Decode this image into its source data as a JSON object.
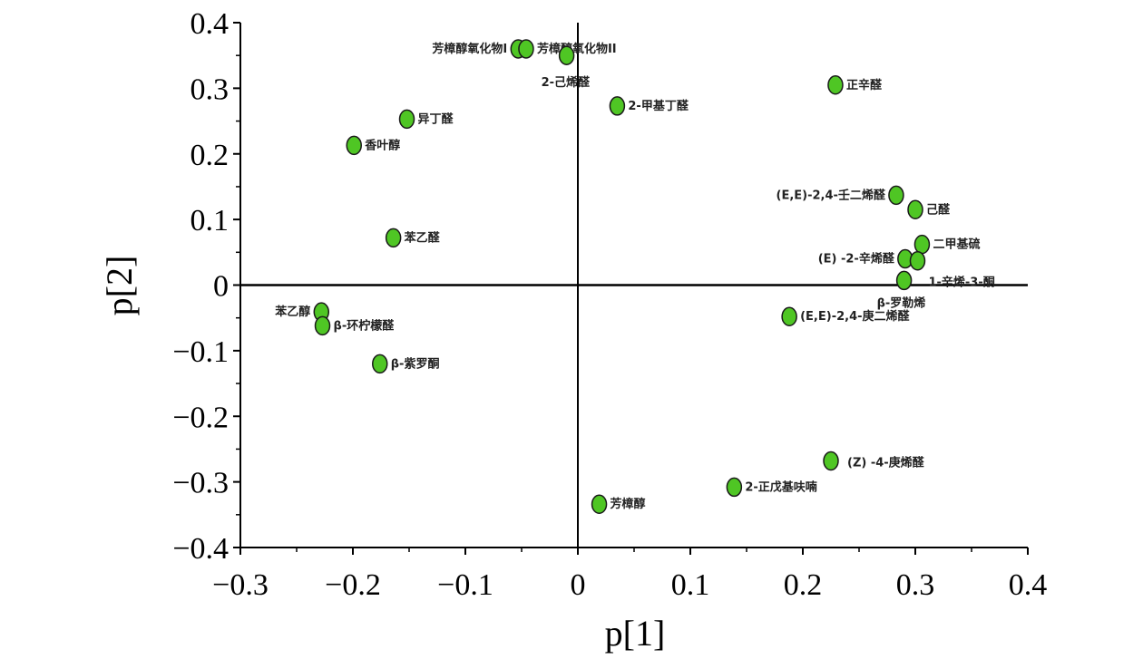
{
  "chart_data": {
    "type": "scatter",
    "title": "",
    "xlabel": "p[1]",
    "ylabel": "p[2]",
    "xlim": [
      -0.3,
      0.4
    ],
    "ylim": [
      -0.4,
      0.4
    ],
    "xticks": [
      "−0.3",
      "−0.2",
      "−0.1",
      "0",
      "0.1",
      "0.2",
      "0.3",
      "0.4"
    ],
    "yticks": [
      "0.4",
      "0.3",
      "0.2",
      "0.1",
      "0",
      "−0.1",
      "−0.2",
      "−0.3",
      "−0.4"
    ],
    "marker_color": "#4fc624",
    "points": [
      {
        "label": "芳樟醇氧化物I",
        "x": -0.053,
        "y": 0.36
      },
      {
        "label": "芳樟醇氧化物II",
        "x": -0.046,
        "y": 0.36
      },
      {
        "label": "2-己烯醛",
        "x": -0.01,
        "y": 0.35
      },
      {
        "label": "2-甲基丁醛",
        "x": 0.035,
        "y": 0.273
      },
      {
        "label": "正辛醛",
        "x": 0.229,
        "y": 0.305
      },
      {
        "label": "异丁醛",
        "x": -0.152,
        "y": 0.253
      },
      {
        "label": "香叶醇",
        "x": -0.199,
        "y": 0.213
      },
      {
        "label": "(E,E)-2,4-壬二烯醛",
        "x": 0.283,
        "y": 0.137
      },
      {
        "label": "己醛",
        "x": 0.3,
        "y": 0.115
      },
      {
        "label": "二甲基硫",
        "x": 0.306,
        "y": 0.062
      },
      {
        "label": "(E)  -2-辛烯醛",
        "x": 0.291,
        "y": 0.04
      },
      {
        "label": "1-辛烯-3-酮",
        "x": 0.302,
        "y": 0.037
      },
      {
        "label": "β-罗勒烯",
        "x": 0.29,
        "y": 0.007
      },
      {
        "label": "苯乙醛",
        "x": -0.164,
        "y": 0.072
      },
      {
        "label": "苯乙醇",
        "x": -0.228,
        "y": -0.041
      },
      {
        "label": "β-环柠檬醛",
        "x": -0.227,
        "y": -0.062
      },
      {
        "label": "β-紫罗酮",
        "x": -0.176,
        "y": -0.12
      },
      {
        "label": "(E,E)-2,4-庚二烯醛",
        "x": 0.188,
        "y": -0.048
      },
      {
        "label": "(Z)  -4-庚烯醛",
        "x": 0.225,
        "y": -0.268
      },
      {
        "label": "2-正戊基呋喃",
        "x": 0.139,
        "y": -0.308
      },
      {
        "label": "芳樟醇",
        "x": 0.019,
        "y": -0.334
      }
    ]
  }
}
